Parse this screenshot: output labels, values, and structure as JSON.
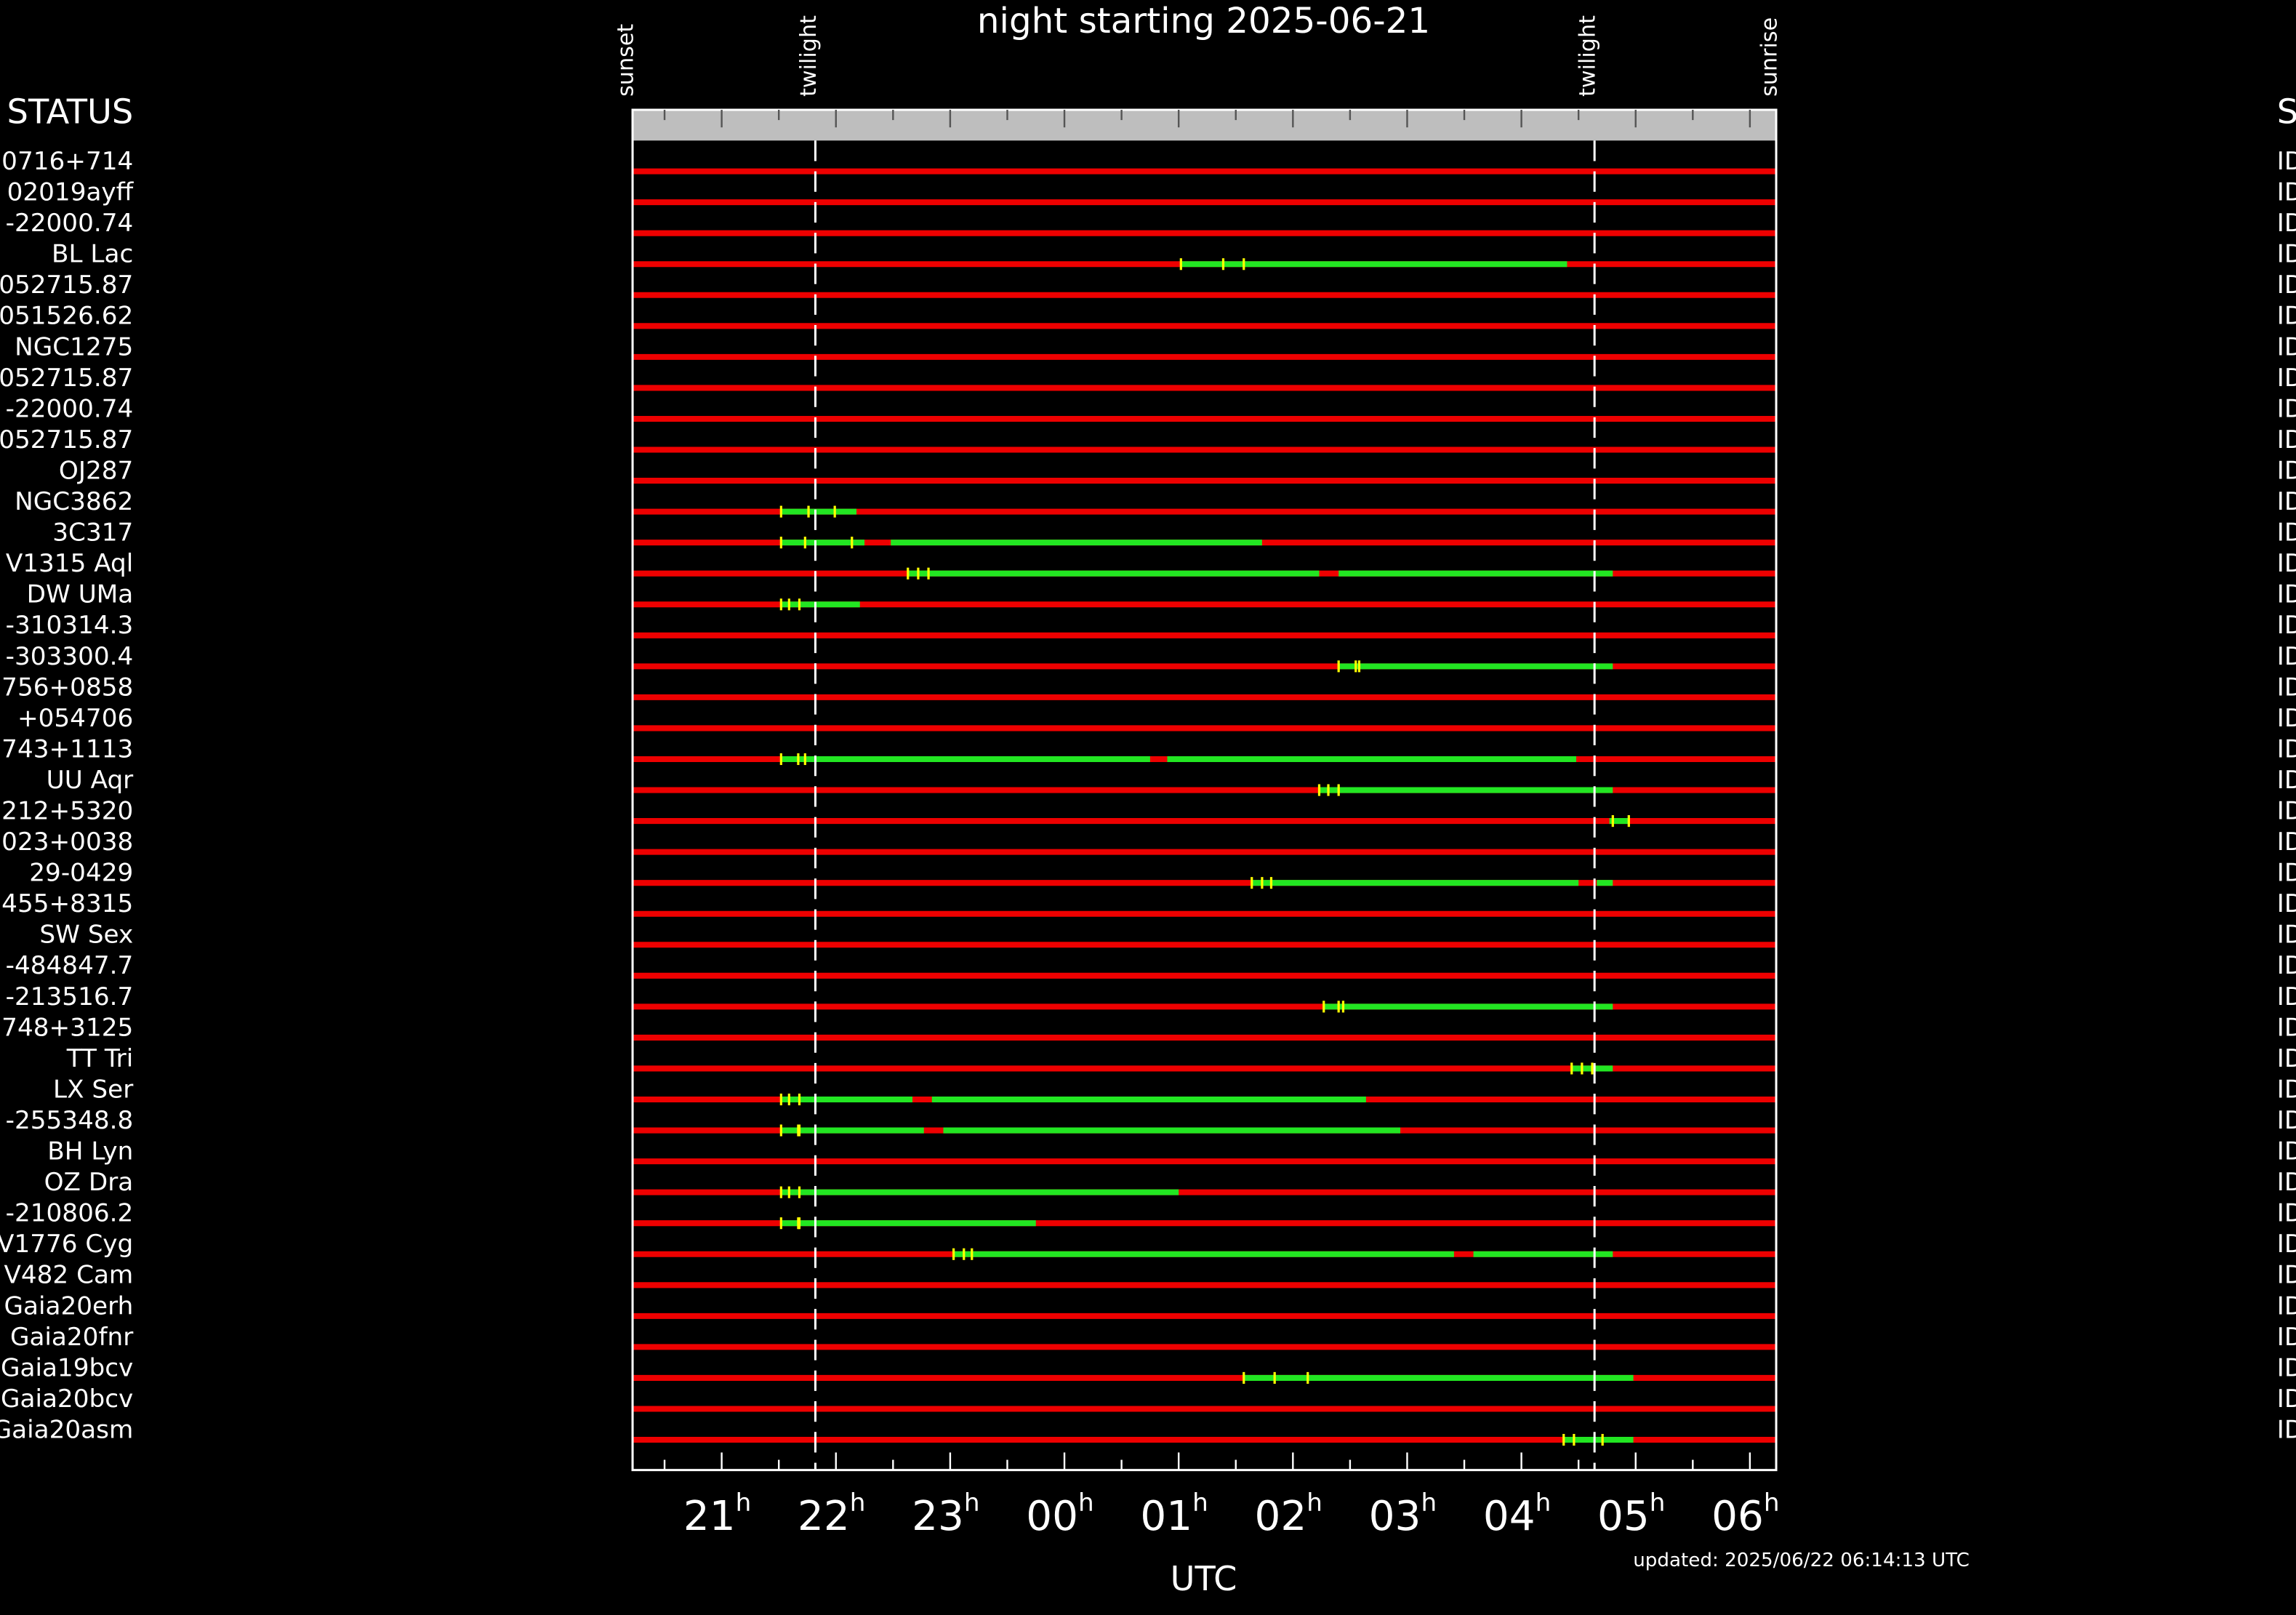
{
  "chart_data": {
    "type": "timeline",
    "title": "night starting 2025-06-21",
    "xlabel": "UTC",
    "footnote": "updated: 2025/06/22 06:14:13 UTC",
    "left_header": "STATUS",
    "right_header": "S",
    "right_text": "ID",
    "tick_suffix": "h",
    "xlim": [
      20.22,
      30.23
    ],
    "xticks": [
      21,
      22,
      23,
      {
        "value": 24,
        "label": "00"
      },
      {
        "value": 25,
        "label": "01"
      },
      {
        "value": 26,
        "label": "02"
      },
      {
        "value": 27,
        "label": "03"
      },
      {
        "value": 28,
        "label": "04"
      },
      {
        "value": 29,
        "label": "05"
      },
      {
        "value": 30,
        "label": "06"
      }
    ],
    "xticks_minor": [
      20.5,
      21.5,
      22.5,
      23.5,
      24.5,
      25.5,
      26.5,
      27.5,
      28.5,
      29.5
    ],
    "events": [
      {
        "label": "sunset",
        "value": 20.22
      },
      {
        "label": "twilight",
        "value": 21.82,
        "line": "dashed"
      },
      {
        "label": "twilight",
        "value": 28.64,
        "line": "dashed"
      },
      {
        "label": "sunrise",
        "value": 30.23
      }
    ],
    "colors": {
      "background": "#000000",
      "header_band": "#bebebe",
      "unobservable": "#ee0000",
      "observable": "#22e622",
      "marker": "#ffff00",
      "frame": "#ffffff"
    },
    "rows": [
      {
        "name": "0716+714",
        "windows": [],
        "marks": []
      },
      {
        "name": "02019ayff",
        "windows": [],
        "marks": []
      },
      {
        "name": "-22000.74",
        "windows": [],
        "marks": []
      },
      {
        "name": "BL Lac",
        "windows": [
          [
            25.02,
            28.4
          ]
        ],
        "marks": [
          25.02,
          25.39,
          25.57
        ]
      },
      {
        "name": "052715.87",
        "windows": [],
        "marks": []
      },
      {
        "name": "051526.62",
        "windows": [],
        "marks": []
      },
      {
        "name": "NGC1275",
        "windows": [],
        "marks": []
      },
      {
        "name": "052715.87",
        "windows": [],
        "marks": []
      },
      {
        "name": "-22000.74",
        "windows": [],
        "marks": []
      },
      {
        "name": "052715.87",
        "windows": [],
        "marks": []
      },
      {
        "name": "OJ287",
        "windows": [],
        "marks": []
      },
      {
        "name": "NGC3862",
        "windows": [
          [
            21.52,
            22.18
          ]
        ],
        "marks": [
          21.52,
          21.76,
          21.99
        ]
      },
      {
        "name": "3C317",
        "windows": [
          [
            21.52,
            22.25
          ],
          [
            22.48,
            25.73
          ]
        ],
        "marks": [
          21.52,
          21.73,
          22.14
        ]
      },
      {
        "name": "V1315 Aql",
        "windows": [
          [
            22.63,
            26.23
          ],
          [
            26.4,
            28.8
          ]
        ],
        "marks": [
          22.63,
          22.72,
          22.81
        ]
      },
      {
        "name": "DW UMa",
        "windows": [
          [
            21.52,
            22.21
          ]
        ],
        "marks": [
          21.52,
          21.59,
          21.68
        ]
      },
      {
        "name": "-310314.3",
        "windows": [],
        "marks": []
      },
      {
        "name": "-303300.4",
        "windows": [
          [
            26.4,
            28.8
          ]
        ],
        "marks": [
          26.4,
          26.55,
          26.58
        ]
      },
      {
        "name": "756+0858",
        "windows": [],
        "marks": []
      },
      {
        "name": "+054706",
        "windows": [],
        "marks": []
      },
      {
        "name": "743+1113",
        "windows": [
          [
            21.52,
            24.75
          ],
          [
            24.9,
            28.48
          ]
        ],
        "marks": [
          21.52,
          21.67,
          21.73
        ]
      },
      {
        "name": "UU Aqr",
        "windows": [
          [
            26.23,
            28.8
          ]
        ],
        "marks": [
          26.23,
          26.31,
          26.4
        ]
      },
      {
        "name": "212+5320",
        "windows": [
          [
            28.77,
            28.94
          ]
        ],
        "marks": [
          28.8,
          28.94
        ]
      },
      {
        "name": "023+0038",
        "windows": [],
        "marks": []
      },
      {
        "name": "29-0429",
        "windows": [
          [
            25.64,
            28.5
          ],
          [
            28.66,
            28.8
          ]
        ],
        "marks": [
          25.64,
          25.73,
          25.81
        ]
      },
      {
        "name": "455+8315",
        "windows": [],
        "marks": []
      },
      {
        "name": "SW Sex",
        "windows": [],
        "marks": []
      },
      {
        "name": "-484847.7",
        "windows": [],
        "marks": []
      },
      {
        "name": "-213516.7",
        "windows": [
          [
            26.27,
            28.8
          ]
        ],
        "marks": [
          26.27,
          26.4,
          26.44
        ]
      },
      {
        "name": "748+3125",
        "windows": [],
        "marks": []
      },
      {
        "name": "TT Tri",
        "windows": [
          [
            28.44,
            28.8
          ]
        ],
        "marks": [
          28.44,
          28.53,
          28.62
        ]
      },
      {
        "name": "LX Ser",
        "windows": [
          [
            21.52,
            22.67
          ],
          [
            22.84,
            26.64
          ]
        ],
        "marks": [
          21.52,
          21.59,
          21.68
        ]
      },
      {
        "name": "-255348.8",
        "windows": [
          [
            21.52,
            22.77
          ],
          [
            22.94,
            26.94
          ]
        ],
        "marks": [
          21.52,
          21.67,
          21.68
        ]
      },
      {
        "name": "BH Lyn",
        "windows": [],
        "marks": []
      },
      {
        "name": "OZ Dra",
        "windows": [
          [
            21.52,
            25.0
          ]
        ],
        "marks": [
          21.52,
          21.59,
          21.68
        ]
      },
      {
        "name": "-210806.2",
        "windows": [
          [
            21.52,
            23.75
          ]
        ],
        "marks": [
          21.52,
          21.67,
          21.68
        ]
      },
      {
        "name": "V1776 Cyg",
        "windows": [
          [
            23.03,
            27.41
          ],
          [
            27.58,
            28.8
          ]
        ],
        "marks": [
          23.03,
          23.12,
          23.19
        ]
      },
      {
        "name": "V482 Cam",
        "windows": [],
        "marks": []
      },
      {
        "name": "Gaia20erh",
        "windows": [],
        "marks": []
      },
      {
        "name": "Gaia20fnr",
        "windows": [],
        "marks": []
      },
      {
        "name": "Gaia19bcv",
        "windows": [
          [
            25.57,
            28.98
          ]
        ],
        "marks": [
          25.57,
          25.84,
          26.13
        ]
      },
      {
        "name": "Gaia20bcv",
        "windows": [],
        "marks": []
      },
      {
        "name": "Gaia20asm",
        "windows": [
          [
            28.37,
            28.98
          ]
        ],
        "marks": [
          28.37,
          28.46,
          28.71
        ]
      }
    ]
  }
}
